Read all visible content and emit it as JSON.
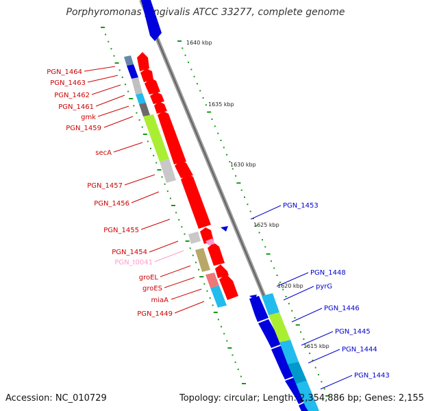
{
  "header": {
    "title": "Porphyromonas gingivalis ATCC 33277, complete genome"
  },
  "footer": {
    "accession": "Accession: NC_010729",
    "topology": "Topology: circular; Length: 2,354,886 bp; Genes: 2,155"
  },
  "colors": {
    "strand_label_red": "#cc0000",
    "strand_label_blue": "#0000cc",
    "trna_label": "#ff99cc",
    "cds_red": "#ff0000",
    "cds_blue": "#0000dd",
    "axis": "#888888",
    "tick": "#119911"
  },
  "scale_marks": [
    "1640 kbp",
    "1635 kbp",
    "1630 kbp",
    "1625 kbp",
    "1620 kbp",
    "1615 kbp"
  ],
  "gene_labels_left": [
    "PGN_1464",
    "PGN_1463",
    "PGN_1462",
    "PGN_1461",
    "gmk",
    "PGN_1459",
    "secA",
    "PGN_1457",
    "PGN_1456",
    "PGN_1455",
    "PGN_1454",
    "PGN_t0041",
    "groEL",
    "groES",
    "miaA",
    "PGN_1449"
  ],
  "gene_labels_right": [
    "PGN_1453",
    "PGN_1448",
    "pyrG",
    "PGN_1446",
    "PGN_1445",
    "PGN_1444",
    "PGN_1443"
  ]
}
